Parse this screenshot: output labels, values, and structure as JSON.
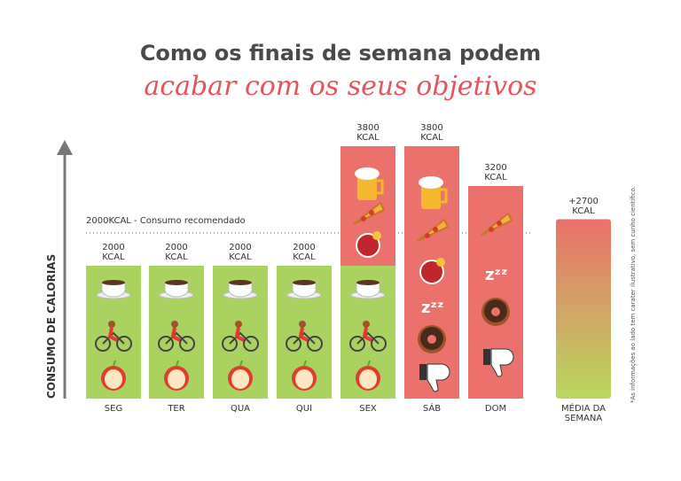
{
  "chart_data": {
    "type": "bar",
    "title": "Como os finais de semana podem",
    "subtitle": "acabar com os seus objetivos",
    "y_label": "CONSUMO DE CALORIAS",
    "reference_label": "2000KCAL - Consumo recomendado",
    "note": "*As informações ao lado tem carater ilustrativo, sem cunho científico.",
    "categories": [
      "SEG",
      "TER",
      "QUA",
      "QUI",
      "SEX",
      "SÁB",
      "DOM",
      "MÉDIA DA SEMANA"
    ],
    "values": [
      2000,
      2000,
      2000,
      2000,
      3800,
      3800,
      3200,
      2700
    ],
    "value_labels": [
      "2000 KCAL",
      "2000 KCAL",
      "2000 KCAL",
      "2000 KCAL",
      "3800 KCAL",
      "3800 KCAL",
      "3200 KCAL",
      "+2700 KCAL"
    ],
    "colors": [
      "#a9d25f",
      "#a9d25f",
      "#a9d25f",
      "#a9d25f",
      [
        "#a9d25f",
        "#ea716c"
      ],
      "#ea716c",
      "#ea716c",
      [
        "#a9d25f",
        "#ea716c"
      ]
    ]
  }
}
